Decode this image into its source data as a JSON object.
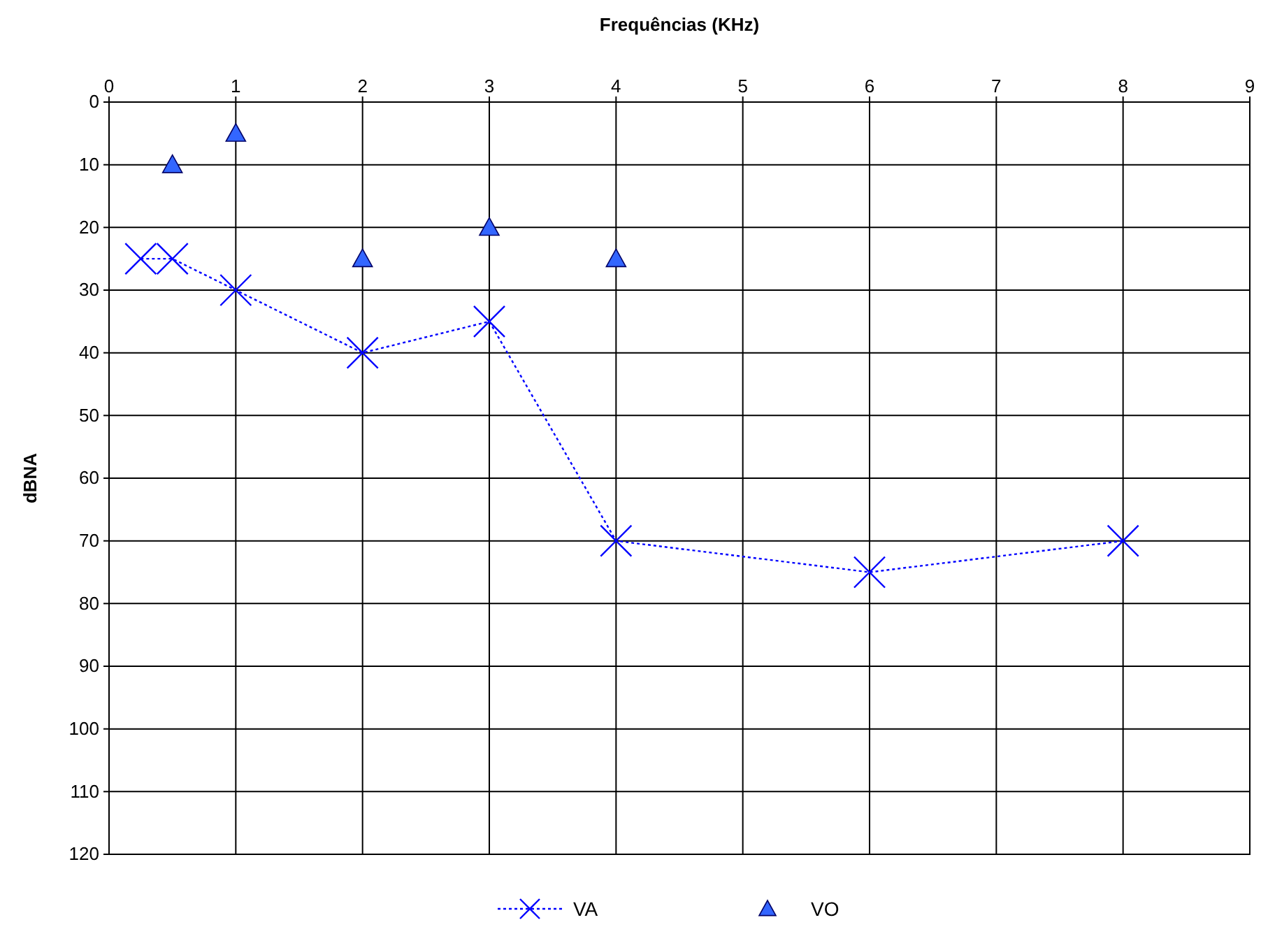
{
  "chart_data": {
    "type": "line",
    "xlabel": "Frequências (KHz)",
    "ylabel": "dBNA",
    "xlim": [
      0,
      9
    ],
    "xticks": [
      0,
      1,
      2,
      3,
      4,
      5,
      6,
      7,
      8,
      9
    ],
    "ylim": [
      120,
      0
    ],
    "yticks": [
      0,
      10,
      20,
      30,
      40,
      50,
      60,
      70,
      80,
      90,
      100,
      110,
      120
    ],
    "grid": true,
    "legend": "bottom",
    "series": [
      {
        "name": "VA",
        "type": "line",
        "color": "#0000ff",
        "marker": "cross",
        "line_style": "dotted",
        "x": [
          0.25,
          0.5,
          1,
          2,
          3,
          4,
          6,
          8
        ],
        "values": [
          25,
          25,
          30,
          40,
          35,
          70,
          75,
          70
        ]
      },
      {
        "name": "VO",
        "type": "scatter",
        "color": "#3366ff",
        "marker": "triangle",
        "x": [
          0.5,
          1,
          2,
          3,
          4
        ],
        "values": [
          10,
          5,
          25,
          20,
          25
        ]
      }
    ]
  }
}
